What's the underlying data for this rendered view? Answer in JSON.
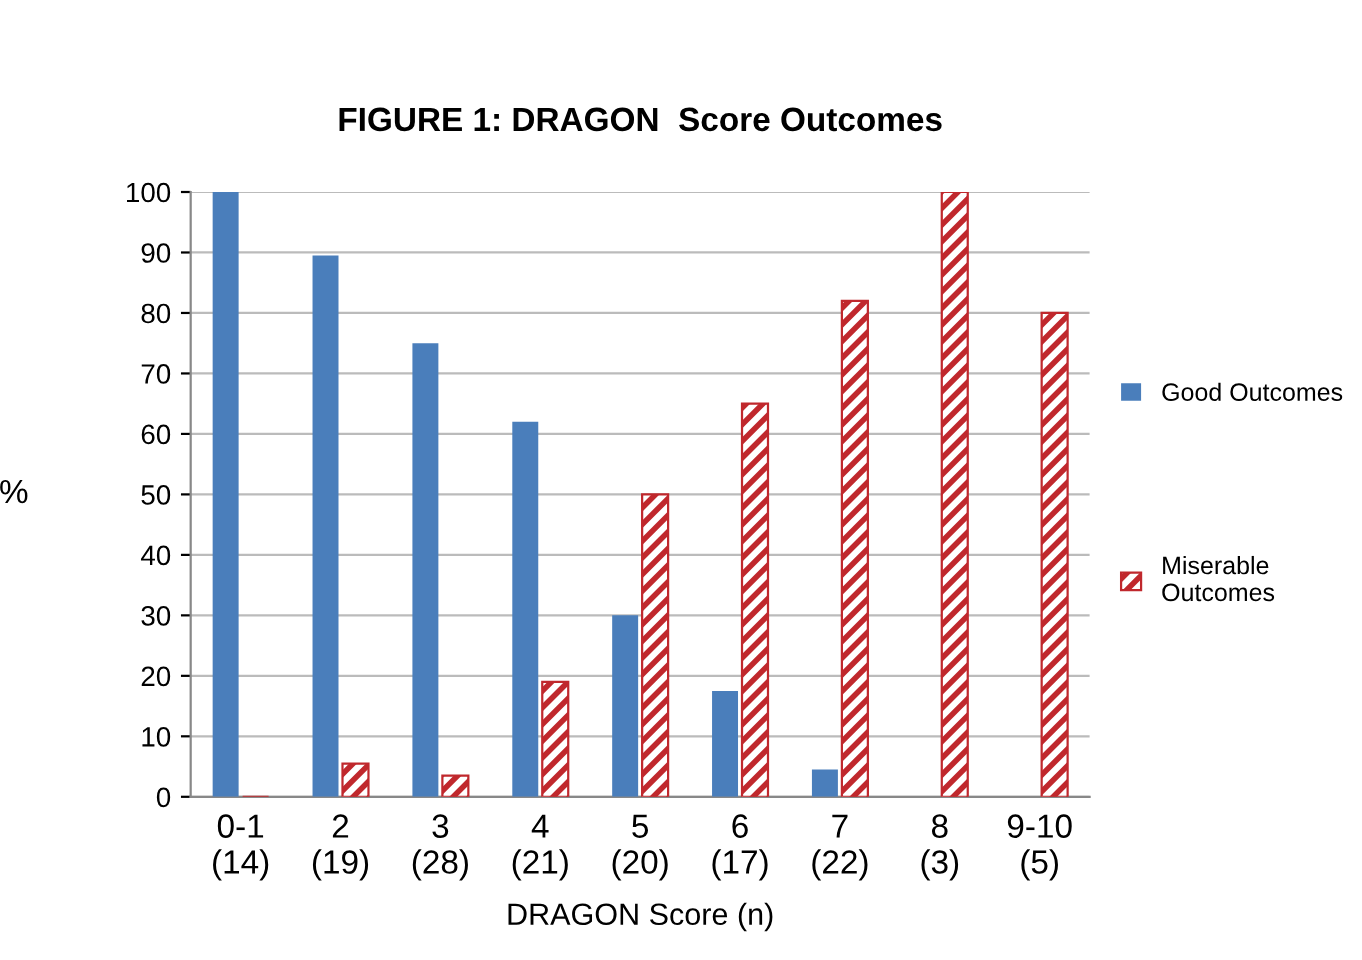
{
  "chart_data": {
    "type": "bar",
    "title": "FIGURE 1: DRAGON  Score Outcomes",
    "xlabel": "DRAGON Score (n)",
    "ylabel": "%",
    "categories": [
      "0-1\n(14)",
      "2\n(19)",
      "3\n(28)",
      "4\n(21)",
      "5\n(20)",
      "6\n(17)",
      "7\n(22)",
      "8\n(3)",
      "9-10\n(5)"
    ],
    "series": [
      {
        "name": "Good Outcomes",
        "color": "#4a7ebb",
        "values": [
          100,
          89.5,
          75,
          62,
          30,
          17.5,
          4.5,
          0,
          0
        ]
      },
      {
        "name": "Miserable\nOutcomes",
        "color": "#c0282d",
        "values": [
          0,
          5.5,
          3.5,
          19,
          50,
          65,
          82,
          100,
          80
        ]
      }
    ],
    "ylim": [
      0,
      100
    ],
    "yticks": [
      0,
      10,
      20,
      30,
      40,
      50,
      60,
      70,
      80,
      90,
      100
    ],
    "grid": "y",
    "legend": "right"
  }
}
